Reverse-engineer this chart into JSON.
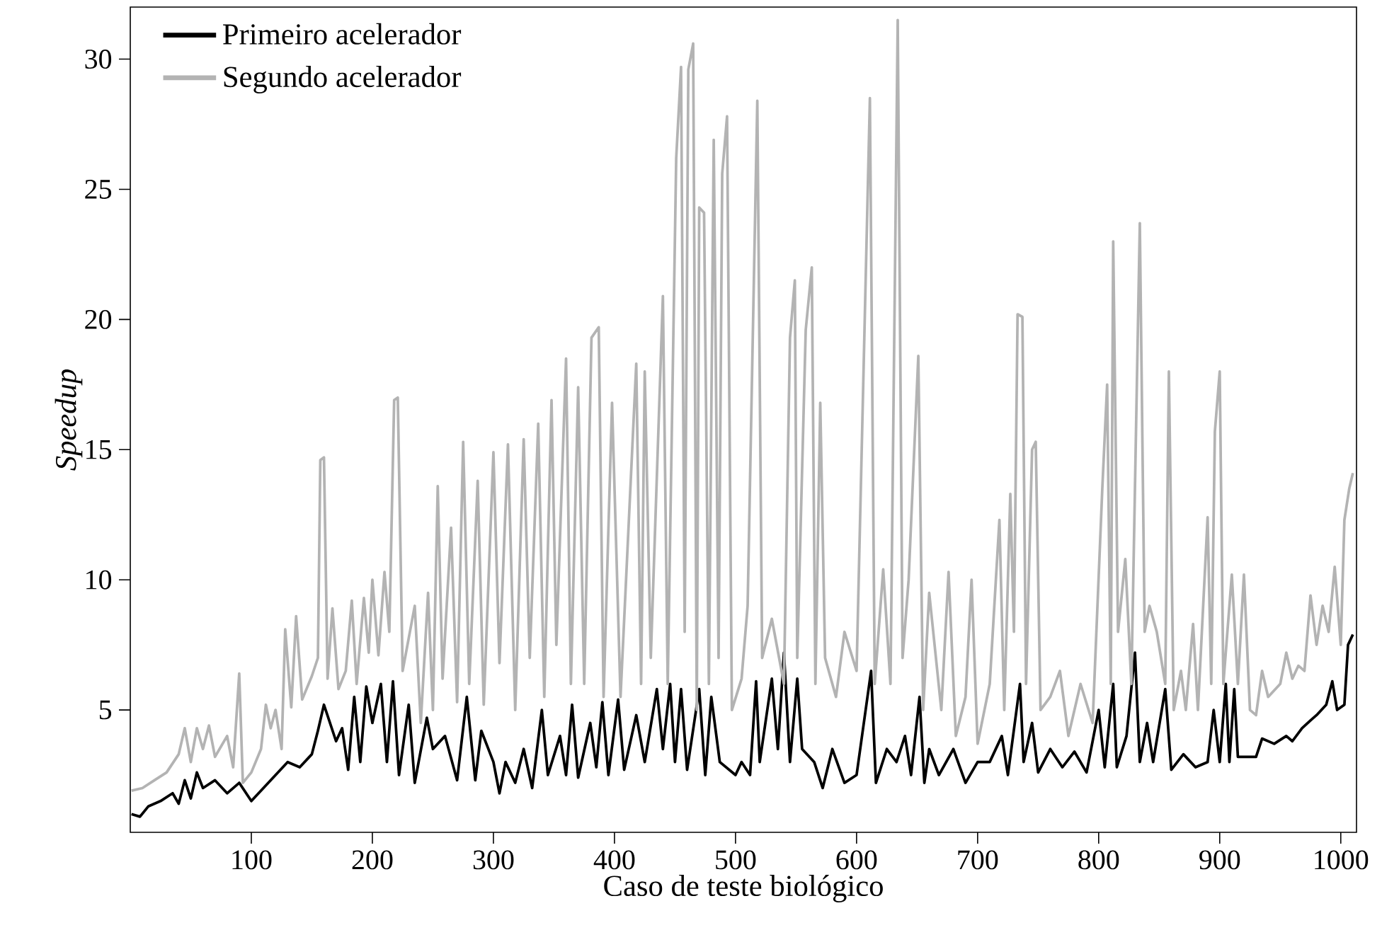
{
  "chart_data": {
    "type": "line",
    "xlabel": "Caso de teste biológico",
    "ylabel": "Speedup",
    "xlim": [
      0,
      1013
    ],
    "ylim": [
      0.3,
      32
    ],
    "xticks": [
      100,
      200,
      300,
      400,
      500,
      600,
      700,
      800,
      900,
      1000
    ],
    "yticks": [
      5,
      10,
      15,
      20,
      25,
      30
    ],
    "legend": "top left",
    "marker": "none",
    "line_style": "solid",
    "series": [
      {
        "name": "Primeiro acelerador",
        "color": "#000000",
        "x": [
          1,
          8,
          15,
          25,
          35,
          40,
          45,
          50,
          55,
          60,
          70,
          80,
          90,
          100,
          110,
          120,
          130,
          140,
          150,
          155,
          160,
          165,
          170,
          175,
          180,
          185,
          190,
          195,
          200,
          207,
          212,
          217,
          222,
          230,
          235,
          245,
          250,
          260,
          270,
          278,
          285,
          290,
          300,
          305,
          310,
          318,
          325,
          332,
          340,
          345,
          355,
          360,
          365,
          370,
          380,
          385,
          390,
          395,
          403,
          408,
          418,
          425,
          435,
          440,
          446,
          450,
          455,
          460,
          470,
          475,
          480,
          487,
          500,
          505,
          512,
          517,
          520,
          530,
          535,
          540,
          545,
          551,
          555,
          565,
          572,
          580,
          590,
          600,
          612,
          616,
          625,
          633,
          640,
          645,
          652,
          656,
          660,
          668,
          680,
          690,
          700,
          710,
          720,
          725,
          735,
          738,
          745,
          750,
          760,
          770,
          780,
          790,
          800,
          805,
          812,
          815,
          823,
          830,
          834,
          840,
          845,
          855,
          860,
          870,
          880,
          890,
          895,
          900,
          905,
          908,
          912,
          915,
          930,
          935,
          945,
          955,
          960,
          968,
          975,
          980,
          988,
          993,
          997,
          1003,
          1006,
          1010
        ],
        "values": [
          1.0,
          0.9,
          1.3,
          1.5,
          1.8,
          1.4,
          2.3,
          1.6,
          2.6,
          2.0,
          2.3,
          1.8,
          2.2,
          1.5,
          2.0,
          2.5,
          3.0,
          2.8,
          3.3,
          4.2,
          5.2,
          4.5,
          3.8,
          4.3,
          2.7,
          5.5,
          3.0,
          5.9,
          4.5,
          6.0,
          3.0,
          6.1,
          2.5,
          5.2,
          2.2,
          4.7,
          3.5,
          4.0,
          2.3,
          5.5,
          2.3,
          4.2,
          3.0,
          1.8,
          3.0,
          2.2,
          3.5,
          2.0,
          5.0,
          2.5,
          4.0,
          2.5,
          5.2,
          2.4,
          4.5,
          2.8,
          5.3,
          2.5,
          5.4,
          2.7,
          4.8,
          3.0,
          5.8,
          3.5,
          6.0,
          3.0,
          5.8,
          2.7,
          5.8,
          2.5,
          5.5,
          3.0,
          2.5,
          3.0,
          2.5,
          6.1,
          3.0,
          6.2,
          3.5,
          7.2,
          3.0,
          6.2,
          3.5,
          3.0,
          2.0,
          3.5,
          2.2,
          2.5,
          6.5,
          2.2,
          3.5,
          3.0,
          4.0,
          2.5,
          5.5,
          2.2,
          3.5,
          2.5,
          3.5,
          2.2,
          3.0,
          3.0,
          4.0,
          2.5,
          6.0,
          3.0,
          4.5,
          2.6,
          3.5,
          2.8,
          3.4,
          2.6,
          5.0,
          2.8,
          6.0,
          2.8,
          4.0,
          7.2,
          3.0,
          4.5,
          3.0,
          5.8,
          2.7,
          3.3,
          2.8,
          3.0,
          5.0,
          3.0,
          6.0,
          3.0,
          5.8,
          3.2,
          3.2,
          3.9,
          3.7,
          4.0,
          3.8,
          4.3,
          4.6,
          4.8,
          5.2,
          6.1,
          5.0,
          5.2,
          7.5,
          7.9
        ]
      },
      {
        "name": "Segundo acelerador",
        "color": "#b3b3b3",
        "x": [
          1,
          10,
          20,
          30,
          40,
          45,
          50,
          55,
          60,
          65,
          70,
          80,
          85,
          90,
          93,
          100,
          108,
          112,
          116,
          120,
          125,
          128,
          133,
          137,
          142,
          150,
          155,
          157,
          160,
          163,
          167,
          172,
          178,
          183,
          187,
          193,
          197,
          200,
          205,
          210,
          214,
          218,
          221,
          225,
          235,
          240,
          246,
          250,
          254,
          258,
          265,
          270,
          275,
          280,
          287,
          292,
          300,
          305,
          312,
          318,
          325,
          330,
          337,
          342,
          348,
          352,
          360,
          364,
          370,
          375,
          381,
          387,
          391,
          398,
          405,
          418,
          422,
          425,
          430,
          440,
          444,
          451,
          455,
          458,
          461,
          465,
          468,
          470,
          474,
          478,
          482,
          486,
          489,
          493,
          497,
          505,
          510,
          518,
          522,
          530,
          540,
          545,
          549,
          551,
          558,
          563,
          566,
          570,
          574,
          583,
          590,
          600,
          611,
          615,
          622,
          628,
          634,
          638,
          643,
          651,
          655,
          660,
          670,
          676,
          682,
          690,
          695,
          700,
          710,
          718,
          722,
          727,
          730,
          733,
          737,
          740,
          745,
          748,
          752,
          760,
          768,
          775,
          785,
          795,
          803,
          807,
          810,
          812,
          816,
          822,
          827,
          834,
          838,
          842,
          848,
          855,
          858,
          862,
          868,
          872,
          878,
          882,
          890,
          893,
          896,
          900,
          903,
          910,
          915,
          920,
          925,
          930,
          935,
          940,
          950,
          955,
          960,
          965,
          970,
          975,
          980,
          985,
          990,
          995,
          1000,
          1003,
          1007,
          1010
        ],
        "values": [
          1.9,
          2.0,
          2.3,
          2.6,
          3.3,
          4.3,
          3.0,
          4.3,
          3.5,
          4.4,
          3.2,
          4.0,
          2.8,
          6.4,
          2.2,
          2.6,
          3.5,
          5.2,
          4.3,
          5.0,
          3.5,
          8.1,
          5.1,
          8.6,
          5.4,
          6.3,
          7.0,
          14.6,
          14.7,
          6.2,
          8.9,
          5.8,
          6.5,
          9.2,
          6.0,
          9.3,
          7.2,
          10.0,
          7.1,
          10.3,
          8.0,
          16.9,
          17.0,
          6.5,
          9.0,
          4.5,
          9.5,
          5.0,
          13.6,
          6.2,
          12.0,
          5.3,
          15.3,
          6.0,
          13.8,
          5.2,
          14.9,
          6.8,
          15.2,
          5.0,
          15.4,
          7.0,
          16.0,
          5.5,
          16.9,
          7.5,
          18.5,
          6.0,
          17.4,
          6.0,
          19.3,
          19.7,
          5.5,
          16.8,
          5.5,
          18.3,
          6.0,
          18.0,
          7.0,
          20.9,
          6.0,
          26.2,
          29.7,
          8.0,
          29.6,
          30.6,
          5.0,
          24.3,
          24.1,
          6.0,
          26.9,
          7.0,
          25.6,
          27.8,
          5.0,
          6.2,
          9.0,
          28.4,
          7.0,
          8.5,
          6.0,
          19.3,
          21.5,
          7.0,
          19.6,
          22.0,
          6.0,
          16.8,
          7.0,
          5.5,
          8.0,
          6.5,
          28.5,
          6.0,
          10.4,
          6.0,
          31.5,
          7.0,
          10.0,
          18.6,
          5.0,
          9.5,
          5.0,
          10.3,
          4.0,
          5.5,
          10.0,
          3.7,
          6.0,
          12.3,
          5.0,
          13.3,
          8.0,
          20.2,
          20.1,
          6.0,
          15.0,
          15.3,
          5.0,
          5.5,
          6.5,
          4.0,
          6.0,
          4.5,
          13.5,
          17.5,
          6.0,
          23.0,
          8.0,
          10.8,
          6.0,
          23.7,
          8.0,
          9.0,
          8.0,
          6.0,
          18.0,
          5.0,
          6.5,
          5.0,
          8.3,
          5.0,
          12.4,
          6.0,
          15.7,
          18.0,
          6.0,
          10.2,
          6.0,
          10.2,
          5.0,
          4.8,
          6.5,
          5.5,
          6.0,
          7.2,
          6.2,
          6.7,
          6.5,
          9.4,
          7.5,
          9.0,
          8.0,
          10.5,
          7.5,
          12.3,
          13.5,
          14.1
        ]
      }
    ]
  }
}
